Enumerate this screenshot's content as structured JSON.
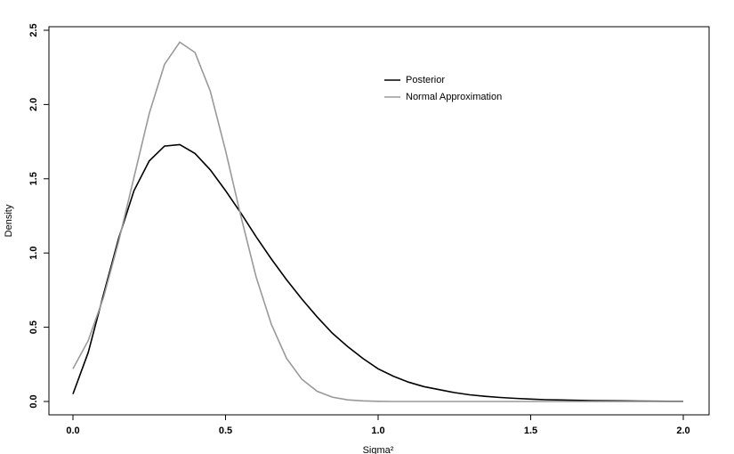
{
  "chart_data": {
    "type": "line",
    "x_label": "Sigma²",
    "y_label": "Density",
    "x": [
      0,
      0.05,
      0.1,
      0.15,
      0.2,
      0.25,
      0.3,
      0.35,
      0.4,
      0.45,
      0.5,
      0.55,
      0.6,
      0.65,
      0.7,
      0.75,
      0.8,
      0.85,
      0.9,
      0.95,
      1.0,
      1.05,
      1.1,
      1.15,
      1.2,
      1.25,
      1.3,
      1.35,
      1.4,
      1.45,
      1.5,
      1.55,
      1.6,
      1.65,
      1.7,
      1.75,
      1.8,
      1.85,
      1.9,
      1.95,
      2.0
    ],
    "series": [
      {
        "name": "Posterior",
        "color": "#000000",
        "values": [
          0.05,
          0.33,
          0.72,
          1.1,
          1.42,
          1.62,
          1.72,
          1.73,
          1.67,
          1.56,
          1.42,
          1.27,
          1.11,
          0.96,
          0.82,
          0.69,
          0.57,
          0.46,
          0.37,
          0.29,
          0.22,
          0.17,
          0.13,
          0.1,
          0.08,
          0.06,
          0.045,
          0.035,
          0.027,
          0.021,
          0.016,
          0.012,
          0.01,
          0.008,
          0.006,
          0.005,
          0.004,
          0.003,
          0.002,
          0.001,
          0.001
        ]
      },
      {
        "name": "Normal Approximation",
        "color": "#999999",
        "values": [
          0.22,
          0.41,
          0.7,
          1.08,
          1.51,
          1.94,
          2.27,
          2.42,
          2.35,
          2.09,
          1.69,
          1.25,
          0.84,
          0.52,
          0.29,
          0.15,
          0.069,
          0.029,
          0.011,
          0.004,
          0.001,
          0,
          0,
          0,
          0,
          0,
          0,
          0,
          0,
          0,
          0,
          0,
          0,
          0,
          0,
          0,
          0,
          0,
          0,
          0,
          0
        ]
      }
    ],
    "xlim": [
      0,
      2.0
    ],
    "ylim": [
      0,
      2.5
    ],
    "xticks": [
      {
        "value": 0,
        "label": "0.0"
      },
      0.5,
      {
        "value": 1,
        "label": "1.0"
      },
      1.5,
      {
        "value": 2,
        "label": "2.0"
      }
    ],
    "yticks": [
      {
        "value": 0,
        "label": "0.0"
      },
      0.5,
      {
        "value": 1,
        "label": "1.0"
      },
      1.5,
      {
        "value": 2,
        "label": "2.0"
      },
      2.5
    ],
    "legend": "top-right"
  }
}
